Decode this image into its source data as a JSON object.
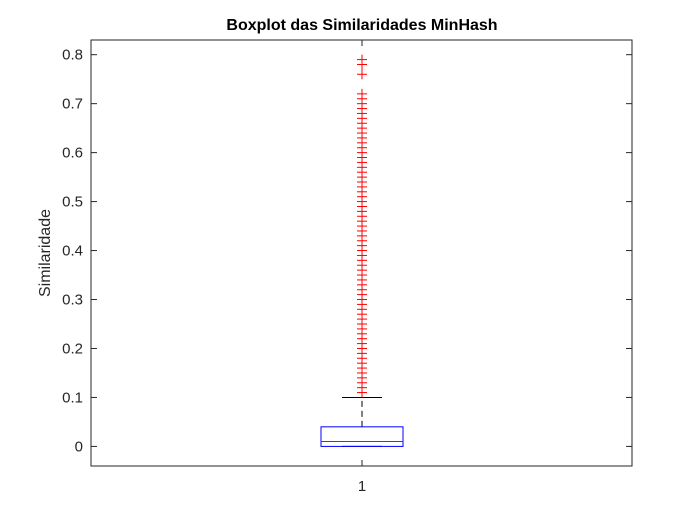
{
  "chart_data": {
    "type": "boxplot",
    "title": "Boxplot das Similaridades MinHash",
    "xlabel": "",
    "ylabel": "Similaridade",
    "categories": [
      "1"
    ],
    "ylim": [
      -0.04,
      0.83
    ],
    "yticks": [
      0,
      0.1,
      0.2,
      0.3,
      0.4,
      0.5,
      0.6,
      0.7,
      0.8
    ],
    "ytick_labels": [
      "0",
      "0.1",
      "0.2",
      "0.3",
      "0.4",
      "0.5",
      "0.6",
      "0.7",
      "0.8"
    ],
    "xtick_labels": [
      "1"
    ],
    "grid": false,
    "box": {
      "q1": 0.0,
      "median": 0.01,
      "q3": 0.04,
      "whisker_low": 0.0,
      "whisker_high": 0.1
    },
    "outliers": [
      0.11,
      0.12,
      0.13,
      0.14,
      0.15,
      0.16,
      0.17,
      0.18,
      0.19,
      0.2,
      0.21,
      0.22,
      0.23,
      0.24,
      0.25,
      0.26,
      0.27,
      0.28,
      0.29,
      0.3,
      0.31,
      0.32,
      0.33,
      0.34,
      0.35,
      0.36,
      0.37,
      0.38,
      0.39,
      0.4,
      0.41,
      0.42,
      0.43,
      0.44,
      0.45,
      0.46,
      0.47,
      0.48,
      0.49,
      0.5,
      0.51,
      0.52,
      0.53,
      0.54,
      0.55,
      0.56,
      0.57,
      0.58,
      0.59,
      0.6,
      0.61,
      0.62,
      0.63,
      0.64,
      0.65,
      0.66,
      0.67,
      0.68,
      0.69,
      0.7,
      0.71,
      0.72,
      0.76,
      0.78,
      0.79
    ],
    "colors": {
      "box": "#0000ff",
      "median": "#ff0000",
      "whisker": "#000000",
      "outlier": "#ff0000"
    }
  }
}
